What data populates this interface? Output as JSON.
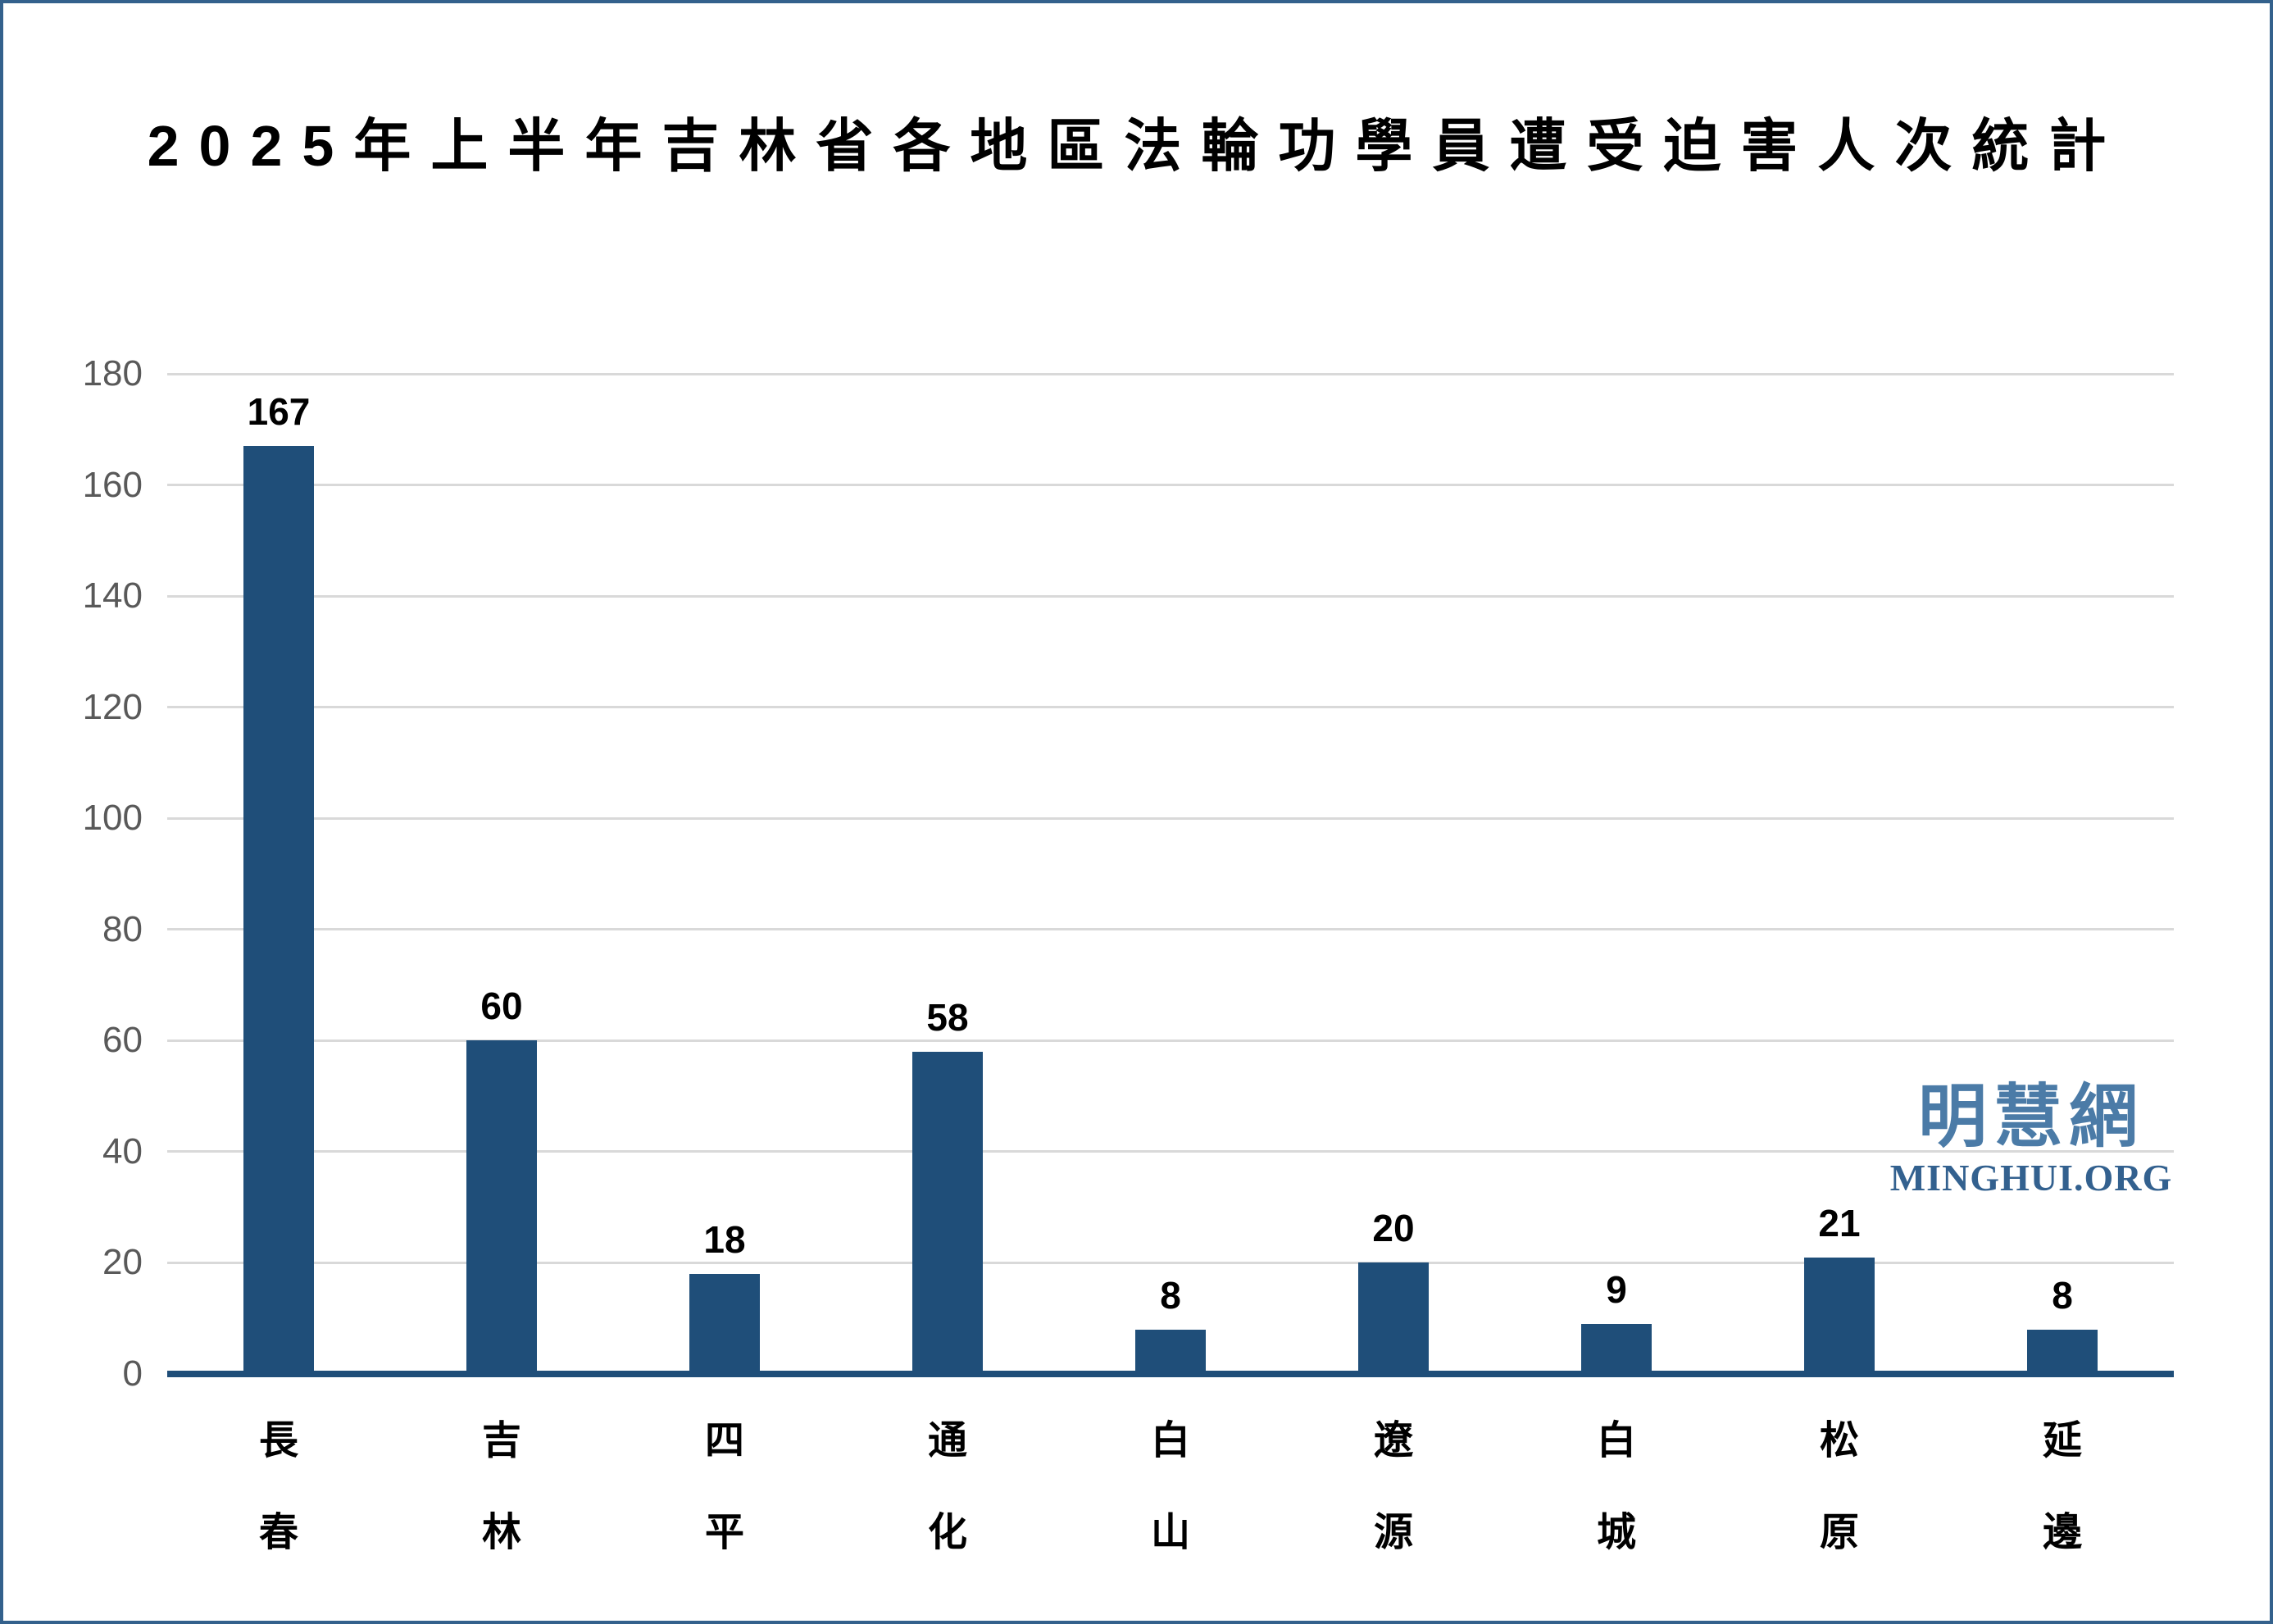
{
  "page": {
    "title": "2025年上半年吉林省各地區法輪功學員遭受迫害人次統計"
  },
  "watermark": {
    "cjk": "明慧網",
    "latin": "MINGHUI.ORG"
  },
  "chart_data": {
    "type": "bar",
    "title": "2025年上半年吉林省各地區法輪功學員遭受迫害人次統計",
    "categories": [
      "長春",
      "吉林",
      "四平",
      "通化",
      "白山",
      "遼源",
      "白城",
      "松原",
      "延邊"
    ],
    "values": [
      167,
      60,
      18,
      58,
      8,
      20,
      9,
      21,
      8
    ],
    "xlabel": "",
    "ylabel": "",
    "ylim": [
      0,
      180
    ],
    "ytick_step": 20,
    "yticks": [
      0,
      20,
      40,
      60,
      80,
      100,
      120,
      140,
      160,
      180
    ],
    "grid": true,
    "legend": "none",
    "data_labels": true,
    "bar_color": "#1F4E79",
    "gridline_color": "#D9D9D9",
    "tick_label_color": "#595959",
    "axis_line_color": "#1F4E79"
  }
}
